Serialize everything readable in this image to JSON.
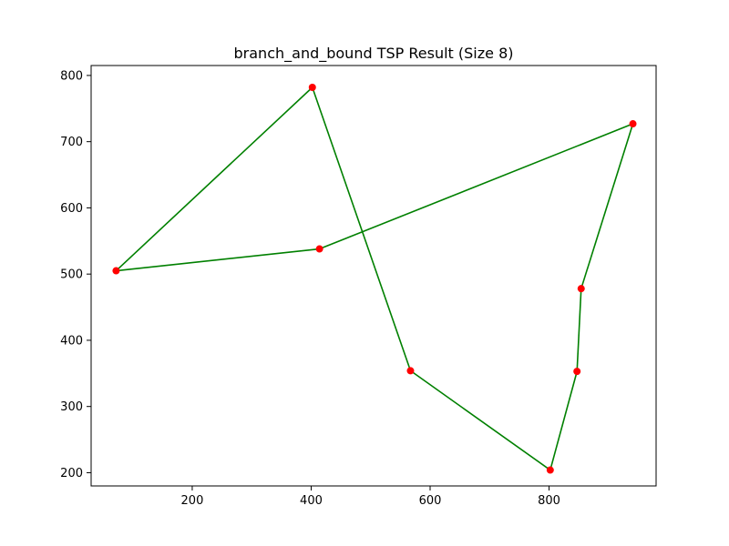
{
  "chart_data": {
    "type": "line",
    "title": "branch_and_bound TSP Result (Size 8)",
    "xlabel": "",
    "ylabel": "",
    "xlim": [
      30,
      980
    ],
    "ylim": [
      180,
      815
    ],
    "xticks": [
      200,
      400,
      600,
      800
    ],
    "yticks": [
      200,
      300,
      400,
      500,
      600,
      700,
      800
    ],
    "grid": false,
    "colors": {
      "route": "#008000",
      "point": "#ff0000"
    },
    "route": [
      {
        "x": 72,
        "y": 505
      },
      {
        "x": 402,
        "y": 782
      },
      {
        "x": 567,
        "y": 354
      },
      {
        "x": 802,
        "y": 204
      },
      {
        "x": 847,
        "y": 353
      },
      {
        "x": 854,
        "y": 478
      },
      {
        "x": 941,
        "y": 727
      },
      {
        "x": 414,
        "y": 538
      },
      {
        "x": 72,
        "y": 505
      }
    ],
    "points": [
      {
        "x": 72,
        "y": 505
      },
      {
        "x": 402,
        "y": 782
      },
      {
        "x": 567,
        "y": 354
      },
      {
        "x": 802,
        "y": 204
      },
      {
        "x": 847,
        "y": 353
      },
      {
        "x": 854,
        "y": 478
      },
      {
        "x": 941,
        "y": 727
      },
      {
        "x": 414,
        "y": 538
      }
    ]
  }
}
